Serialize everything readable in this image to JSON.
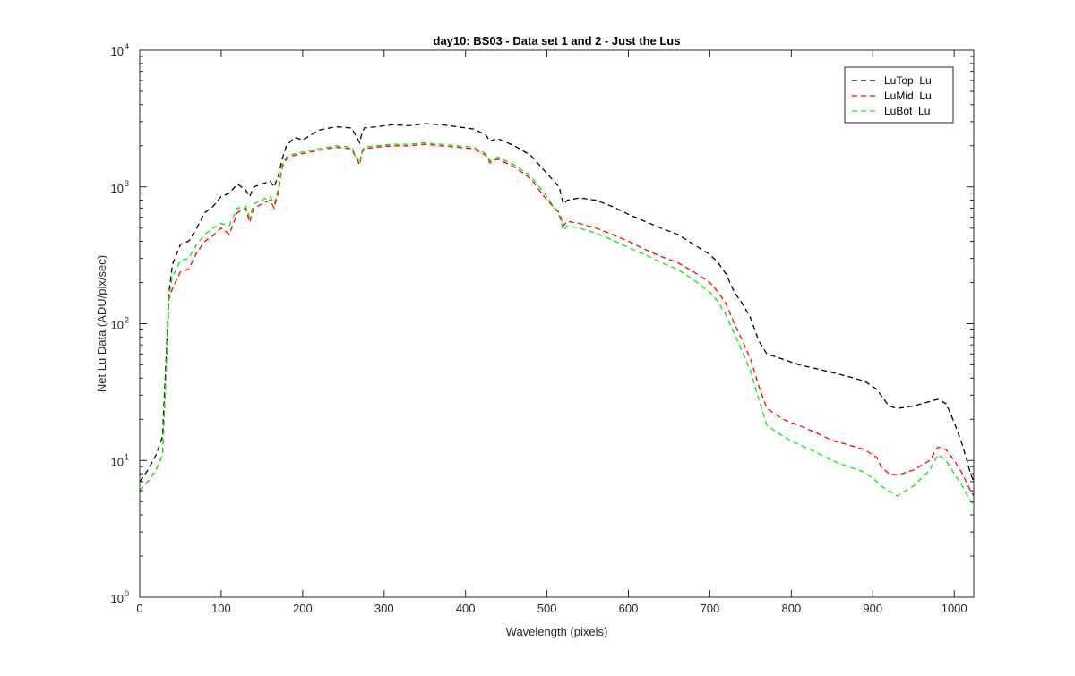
{
  "chart_data": {
    "type": "line",
    "title": "day10: BS03 - Data set 1 and 2 - Just the Lus",
    "xlabel": "Wavelength (pixels)",
    "ylabel": "Net Lu Data (ADU/pix/sec)",
    "xlim": [
      0,
      1024
    ],
    "ylim": [
      1,
      10000
    ],
    "yscale": "log",
    "grid": false,
    "legend_position": "top-right",
    "x_ticks": [
      "0",
      "100",
      "200",
      "300",
      "400",
      "500",
      "600",
      "700",
      "800",
      "900",
      "1000"
    ],
    "y_ticks": [
      {
        "base": "10",
        "exp": "0"
      },
      {
        "base": "10",
        "exp": "1"
      },
      {
        "base": "10",
        "exp": "2"
      },
      {
        "base": "10",
        "exp": "3"
      },
      {
        "base": "10",
        "exp": "4"
      }
    ],
    "x": [
      0,
      10,
      20,
      28,
      32,
      36,
      40,
      50,
      60,
      70,
      80,
      90,
      100,
      110,
      120,
      130,
      135,
      140,
      150,
      160,
      165,
      170,
      175,
      180,
      190,
      200,
      220,
      240,
      260,
      270,
      273,
      276,
      290,
      310,
      330,
      350,
      370,
      390,
      410,
      425,
      430,
      433,
      440,
      460,
      480,
      500,
      515,
      520,
      525,
      540,
      560,
      580,
      600,
      620,
      640,
      660,
      680,
      700,
      710,
      720,
      730,
      740,
      750,
      760,
      770,
      790,
      810,
      830,
      850,
      870,
      890,
      905,
      910,
      920,
      930,
      950,
      970,
      980,
      990,
      1000,
      1010,
      1020,
      1024
    ],
    "series": [
      {
        "name": "LuTop  Lu",
        "color": "#000000",
        "values": [
          7,
          8.5,
          11,
          15,
          50,
          170,
          270,
          380,
          400,
          500,
          650,
          720,
          850,
          900,
          1050,
          950,
          850,
          1000,
          1050,
          1100,
          1000,
          1200,
          1600,
          2000,
          2300,
          2200,
          2600,
          2750,
          2700,
          2100,
          2500,
          2700,
          2750,
          2850,
          2800,
          2900,
          2850,
          2750,
          2650,
          2400,
          2150,
          2200,
          2250,
          2000,
          1700,
          1250,
          1000,
          750,
          800,
          830,
          800,
          720,
          630,
          560,
          500,
          450,
          380,
          320,
          280,
          230,
          170,
          140,
          110,
          75,
          60,
          55,
          50,
          47,
          44,
          41,
          38,
          33,
          30,
          25,
          24,
          25,
          27,
          28,
          26,
          19,
          13,
          8,
          7
        ]
      },
      {
        "name": "LuMid  Lu",
        "color": "#ff0000",
        "values": [
          6,
          7,
          8.5,
          11,
          40,
          150,
          180,
          240,
          250,
          330,
          400,
          440,
          500,
          450,
          650,
          700,
          550,
          700,
          750,
          800,
          700,
          900,
          1400,
          1600,
          1700,
          1750,
          1850,
          1950,
          1900,
          1450,
          1800,
          1900,
          1950,
          2000,
          2000,
          2050,
          2000,
          1950,
          1900,
          1700,
          1500,
          1550,
          1600,
          1400,
          1150,
          800,
          650,
          520,
          560,
          540,
          500,
          450,
          400,
          350,
          310,
          280,
          240,
          200,
          170,
          140,
          100,
          75,
          55,
          35,
          24,
          20,
          18,
          16,
          14,
          13,
          12,
          10.5,
          9,
          8,
          7.8,
          8.5,
          10,
          12.5,
          12,
          10,
          8,
          6,
          5.5
        ]
      },
      {
        "name": "LuBot  Lu",
        "color": "#00ee00",
        "values": [
          6,
          7,
          8.5,
          11,
          40,
          160,
          220,
          290,
          300,
          380,
          450,
          500,
          540,
          520,
          700,
          720,
          600,
          750,
          800,
          850,
          750,
          950,
          1450,
          1650,
          1750,
          1800,
          1900,
          2000,
          1950,
          1500,
          1850,
          1950,
          2000,
          2050,
          2050,
          2100,
          2050,
          2000,
          1950,
          1750,
          1550,
          1600,
          1650,
          1450,
          1200,
          850,
          620,
          480,
          520,
          500,
          460,
          410,
          360,
          320,
          280,
          250,
          210,
          170,
          145,
          115,
          85,
          62,
          45,
          28,
          18,
          15,
          13,
          11.5,
          10,
          9,
          8.2,
          7,
          6.5,
          6,
          5.5,
          6.5,
          8.5,
          11,
          10,
          8,
          6.5,
          5,
          4.8
        ]
      }
    ]
  }
}
